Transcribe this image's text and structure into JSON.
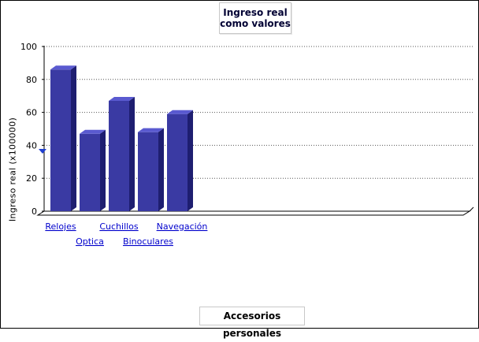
{
  "chart_data": {
    "type": "bar",
    "title": [
      "Ingreso real",
      "como valores"
    ],
    "ylabel": "Ingreso real (x100000)",
    "xlabel": "Accesorios personales",
    "categories": [
      "Relojes",
      "Optica",
      "Cuchillos",
      "Binoculares",
      "Navegación"
    ],
    "values": [
      86,
      47,
      67,
      48,
      59
    ],
    "ylim": [
      0,
      100
    ],
    "yticks": [
      0,
      20,
      40,
      60,
      80,
      100
    ],
    "grid": true,
    "bar_color": "#3a3aa3",
    "bar_side_color": "#1e1e70",
    "bar_top_color": "#5a5ad0",
    "link_color": "#0000cc"
  }
}
